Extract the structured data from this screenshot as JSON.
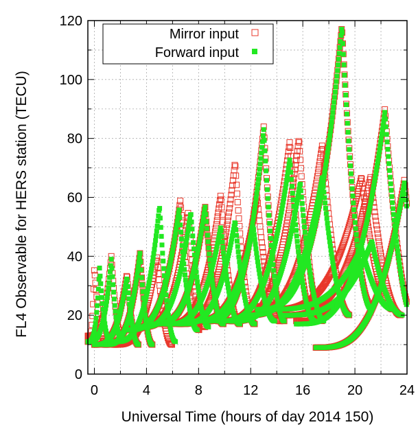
{
  "chart_data": {
    "type": "scatter",
    "title": "",
    "xlabel": "Universal Time (hours of day 2014 150)",
    "ylabel": "FL4 Observable for HERS station (TECU)",
    "xlim": [
      -0.5,
      24
    ],
    "ylim": [
      0,
      120
    ],
    "xticks": [
      "0",
      "4",
      "8",
      "12",
      "16",
      "20",
      "24"
    ],
    "yticks": [
      "0",
      "20",
      "40",
      "60",
      "80",
      "100",
      "120"
    ],
    "grid": true,
    "legend_position": "top-left",
    "series": [
      {
        "name": "Mirror input",
        "marker": "open-square",
        "color": "#e8372a",
        "arcs": [
          {
            "start": -0.5,
            "peak": 0.0,
            "min": 11,
            "top": 36
          },
          {
            "start": -0.5,
            "peak": 1.3,
            "min": 13,
            "top": 40
          },
          {
            "start": 0.0,
            "peak": 2.5,
            "min": 10,
            "top": 34
          },
          {
            "start": 0.8,
            "peak": 3.5,
            "min": 10,
            "top": 41
          },
          {
            "start": 1.5,
            "peak": 4.8,
            "min": 10,
            "top": 40
          },
          {
            "start": 2.5,
            "peak": 6.6,
            "min": 15,
            "top": 59
          },
          {
            "start": 3.5,
            "peak": 7.2,
            "min": 16,
            "top": 55
          },
          {
            "start": 4.5,
            "peak": 8.5,
            "min": 17,
            "top": 57
          },
          {
            "start": 5.5,
            "peak": 9.7,
            "min": 17,
            "top": 61
          },
          {
            "start": 6.5,
            "peak": 10.8,
            "min": 17,
            "top": 72
          },
          {
            "start": 7.5,
            "peak": 12.5,
            "min": 18,
            "top": 60
          },
          {
            "start": 8.5,
            "peak": 13.0,
            "min": 18,
            "top": 84
          },
          {
            "start": 9.5,
            "peak": 15.0,
            "min": 18,
            "top": 79
          },
          {
            "start": 10.5,
            "peak": 15.7,
            "min": 18,
            "top": 80
          },
          {
            "start": 11.5,
            "peak": 17.5,
            "min": 20,
            "top": 78
          },
          {
            "start": 12.5,
            "peak": 19.0,
            "min": 23,
            "top": 118
          },
          {
            "start": 13.5,
            "peak": 20.5,
            "min": 22,
            "top": 67
          },
          {
            "start": 14.5,
            "peak": 21.2,
            "min": 20,
            "top": 67
          },
          {
            "start": 15.5,
            "peak": 22.3,
            "min": 18,
            "top": 90
          },
          {
            "start": 17.0,
            "peak": 23.8,
            "min": 9,
            "top": 66
          }
        ]
      },
      {
        "name": "Forward input",
        "marker": "filled-square",
        "color": "#22e822",
        "arcs": [
          {
            "start": -0.5,
            "peak": 0.4,
            "min": 11,
            "top": 36
          },
          {
            "start": -0.5,
            "peak": 1.3,
            "min": 11,
            "top": 39
          },
          {
            "start": 0.0,
            "peak": 2.5,
            "min": 10,
            "top": 33
          },
          {
            "start": 0.8,
            "peak": 3.5,
            "min": 10,
            "top": 41
          },
          {
            "start": 1.5,
            "peak": 5.0,
            "min": 11,
            "top": 57
          },
          {
            "start": 2.5,
            "peak": 6.5,
            "min": 15,
            "top": 56
          },
          {
            "start": 3.5,
            "peak": 7.4,
            "min": 16,
            "top": 55
          },
          {
            "start": 4.5,
            "peak": 8.5,
            "min": 17,
            "top": 57
          },
          {
            "start": 5.5,
            "peak": 9.7,
            "min": 17,
            "top": 50
          },
          {
            "start": 6.5,
            "peak": 10.8,
            "min": 17,
            "top": 52
          },
          {
            "start": 7.5,
            "peak": 12.2,
            "min": 18,
            "top": 50
          },
          {
            "start": 8.5,
            "peak": 13.0,
            "min": 18,
            "top": 83
          },
          {
            "start": 9.5,
            "peak": 15.0,
            "min": 18,
            "top": 73
          },
          {
            "start": 10.5,
            "peak": 15.8,
            "min": 18,
            "top": 65
          },
          {
            "start": 11.5,
            "peak": 17.5,
            "min": 20,
            "top": 67
          },
          {
            "start": 12.5,
            "peak": 19.0,
            "min": 22,
            "top": 118
          },
          {
            "start": 13.5,
            "peak": 20.5,
            "min": 22,
            "top": 43
          },
          {
            "start": 14.5,
            "peak": 21.3,
            "min": 20,
            "top": 45
          },
          {
            "start": 15.5,
            "peak": 22.3,
            "min": 17,
            "top": 89
          },
          {
            "start": 17.0,
            "peak": 23.8,
            "min": 9,
            "top": 65
          }
        ]
      }
    ]
  }
}
